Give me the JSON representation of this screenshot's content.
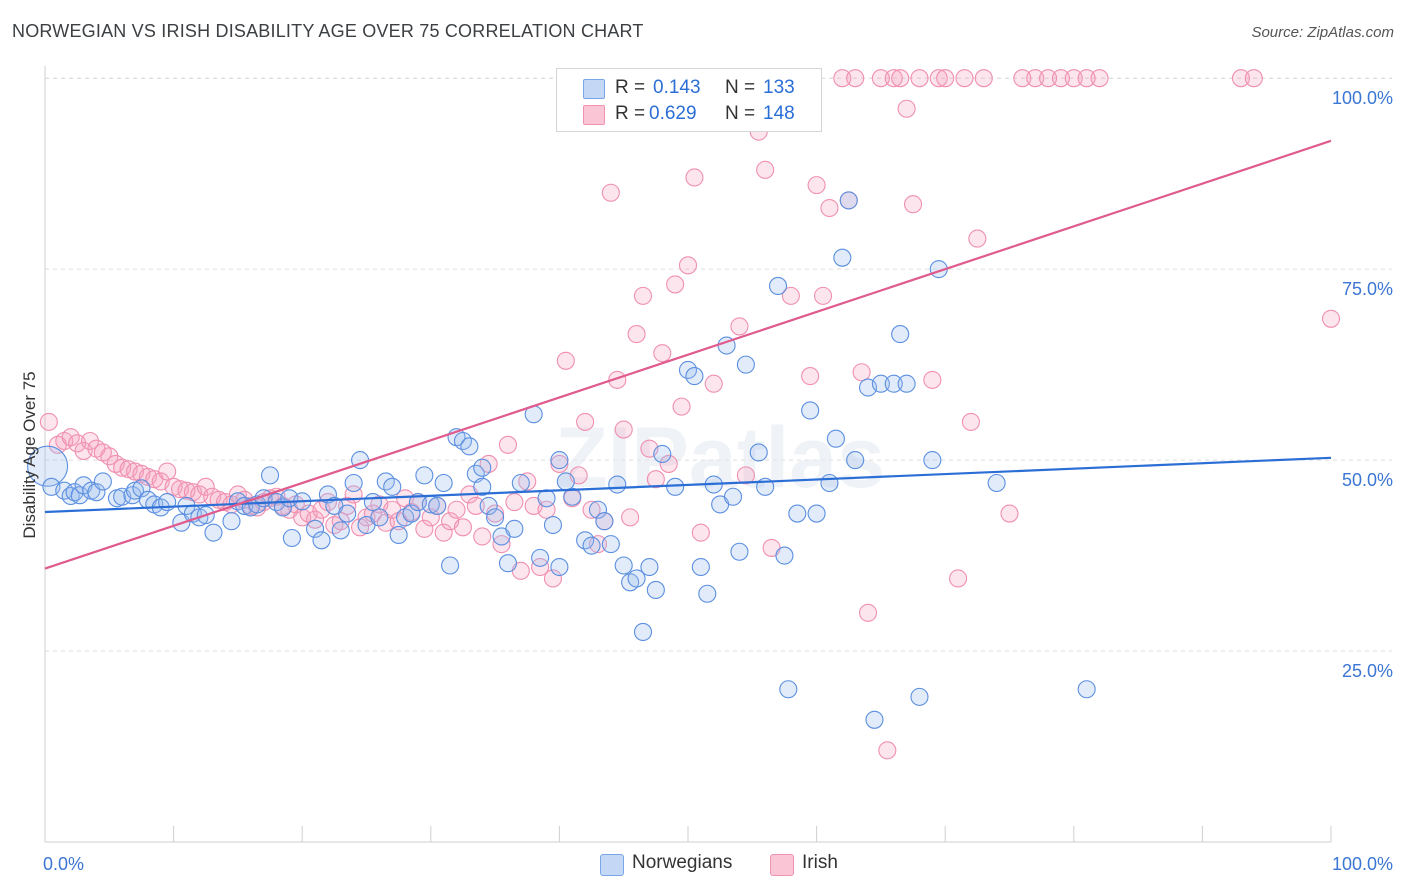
{
  "title": "NORWEGIAN VS IRISH DISABILITY AGE OVER 75 CORRELATION CHART",
  "source": "Source: ZipAtlas.com",
  "watermark": "ZIPatlas",
  "legend": {
    "r_label": "R =",
    "n_label": "N =",
    "norwegians": {
      "r": "0.143",
      "n": "133",
      "color": "#9bbdf0"
    },
    "irish": {
      "r": "0.629",
      "n": "148",
      "color": "#f5a3bd"
    }
  },
  "bottom_legend": {
    "norwegians": "Norwegians",
    "irish": "Irish"
  },
  "chart_data": {
    "type": "scatter",
    "title": "NORWEGIAN VS IRISH DISABILITY AGE OVER 75 CORRELATION CHART",
    "xlabel": "",
    "ylabel": "Disability Age Over 75",
    "xlim": [
      0,
      100
    ],
    "ylim": [
      0,
      105
    ],
    "x_tick_labels": [
      "0.0%",
      "100.0%"
    ],
    "y_tick_labels": [
      "25.0%",
      "50.0%",
      "75.0%",
      "100.0%"
    ],
    "y_ticks": [
      25,
      50,
      75,
      100
    ],
    "grid": true,
    "legend_position": "top-center",
    "series": [
      {
        "name": "Norwegians",
        "color": "#5b8fe0",
        "trend": {
          "x": [
            0,
            100
          ],
          "y": [
            43.2,
            50.3
          ],
          "color": "#2b6ed6"
        },
        "points": [
          [
            0.2,
            49.2
          ],
          [
            0.5,
            46.5
          ],
          [
            1.5,
            46.0
          ],
          [
            2,
            45.3
          ],
          [
            2.3,
            45.8
          ],
          [
            2.7,
            45.4
          ],
          [
            3,
            46.7
          ],
          [
            3.6,
            46.0
          ],
          [
            4,
            45.8
          ],
          [
            4.5,
            47.2
          ],
          [
            5.6,
            45.0
          ],
          [
            6,
            45.2
          ],
          [
            6.8,
            45.4
          ],
          [
            7,
            46.0
          ],
          [
            7.5,
            46.3
          ],
          [
            8,
            44.8
          ],
          [
            8.5,
            44.2
          ],
          [
            9,
            43.8
          ],
          [
            9.5,
            44.5
          ],
          [
            10.6,
            41.8
          ],
          [
            11,
            44.0
          ],
          [
            11.5,
            43.0
          ],
          [
            12,
            42.5
          ],
          [
            12.5,
            42.8
          ],
          [
            13.1,
            40.5
          ],
          [
            14.5,
            42.0
          ],
          [
            15,
            44.6
          ],
          [
            15.5,
            44.0
          ],
          [
            16,
            43.8
          ],
          [
            16.5,
            44.2
          ],
          [
            17,
            45.0
          ],
          [
            17.5,
            48.0
          ],
          [
            18,
            44.5
          ],
          [
            18.5,
            43.8
          ],
          [
            19,
            45.0
          ],
          [
            19.2,
            39.8
          ],
          [
            20,
            44.6
          ],
          [
            21,
            41.0
          ],
          [
            21.5,
            39.5
          ],
          [
            22,
            45.5
          ],
          [
            22.5,
            44.0
          ],
          [
            23,
            40.8
          ],
          [
            23.5,
            43.0
          ],
          [
            24,
            47.0
          ],
          [
            24.5,
            50.0
          ],
          [
            25,
            41.5
          ],
          [
            25.5,
            44.5
          ],
          [
            26,
            42.5
          ],
          [
            26.5,
            47.2
          ],
          [
            27,
            46.5
          ],
          [
            27.5,
            40.2
          ],
          [
            28,
            42.5
          ],
          [
            28.5,
            43.0
          ],
          [
            29,
            44.5
          ],
          [
            29.5,
            48.0
          ],
          [
            30,
            44.2
          ],
          [
            30.5,
            44.0
          ],
          [
            31,
            47.0
          ],
          [
            31.5,
            36.2
          ],
          [
            32,
            53.0
          ],
          [
            32.5,
            52.5
          ],
          [
            33,
            51.8
          ],
          [
            33.5,
            48.2
          ],
          [
            34,
            49.0
          ],
          [
            34.5,
            44.0
          ],
          [
            35,
            42.5
          ],
          [
            35.5,
            40.0
          ],
          [
            36,
            36.5
          ],
          [
            36.5,
            41.0
          ],
          [
            37,
            47.0
          ],
          [
            38,
            56.0
          ],
          [
            38.5,
            37.2
          ],
          [
            39,
            45.0
          ],
          [
            39.5,
            41.5
          ],
          [
            40,
            36.0
          ],
          [
            40.5,
            47.2
          ],
          [
            41,
            45.2
          ],
          [
            42,
            39.5
          ],
          [
            42.5,
            38.8
          ],
          [
            43,
            43.5
          ],
          [
            43.5,
            42.0
          ],
          [
            44,
            39.0
          ],
          [
            44.5,
            46.8
          ],
          [
            45,
            36.2
          ],
          [
            45.5,
            34.0
          ],
          [
            46,
            34.5
          ],
          [
            46.5,
            27.5
          ],
          [
            47,
            36.0
          ],
          [
            47.5,
            33.0
          ],
          [
            48,
            50.8
          ],
          [
            49,
            46.5
          ],
          [
            50,
            61.8
          ],
          [
            50.5,
            61.0
          ],
          [
            51,
            36.0
          ],
          [
            51.5,
            32.5
          ],
          [
            52,
            46.8
          ],
          [
            52.5,
            44.2
          ],
          [
            53,
            65.0
          ],
          [
            53.5,
            45.2
          ],
          [
            54,
            38.0
          ],
          [
            54.5,
            62.5
          ],
          [
            55.5,
            51.0
          ],
          [
            56,
            46.5
          ],
          [
            57,
            72.8
          ],
          [
            57.5,
            37.5
          ],
          [
            57.8,
            20.0
          ],
          [
            58.5,
            43.0
          ],
          [
            59.5,
            56.5
          ],
          [
            60,
            43.0
          ],
          [
            61,
            47.0
          ],
          [
            61.5,
            52.8
          ],
          [
            62,
            76.5
          ],
          [
            62.5,
            84.0
          ],
          [
            63,
            50.0
          ],
          [
            64,
            59.5
          ],
          [
            64.5,
            16.0
          ],
          [
            65,
            60.0
          ],
          [
            66,
            60.0
          ],
          [
            66.5,
            66.5
          ],
          [
            67,
            60.0
          ],
          [
            68,
            19.0
          ],
          [
            69,
            50.0
          ],
          [
            69.5,
            75.0
          ],
          [
            74,
            47.0
          ],
          [
            81,
            20.0
          ],
          [
            40,
            50.0
          ],
          [
            34,
            46.5
          ]
        ]
      },
      {
        "name": "Irish",
        "color": "#f07ba0",
        "trend": {
          "x": [
            0,
            100
          ],
          "y": [
            35.8,
            91.8
          ],
          "color": "#e05b8c"
        },
        "points": [
          [
            0.3,
            55.0
          ],
          [
            1,
            52.0
          ],
          [
            1.5,
            52.5
          ],
          [
            2,
            53.0
          ],
          [
            2.5,
            52.2
          ],
          [
            3,
            51.2
          ],
          [
            3.5,
            52.5
          ],
          [
            4,
            51.5
          ],
          [
            4.5,
            51.0
          ],
          [
            5,
            50.5
          ],
          [
            5.5,
            49.5
          ],
          [
            6,
            49.0
          ],
          [
            6.5,
            48.8
          ],
          [
            7,
            48.5
          ],
          [
            7.5,
            48.2
          ],
          [
            8,
            47.8
          ],
          [
            8.5,
            47.5
          ],
          [
            9,
            47.2
          ],
          [
            9.5,
            48.5
          ],
          [
            10,
            46.5
          ],
          [
            10.5,
            46.2
          ],
          [
            11,
            46.0
          ],
          [
            11.5,
            45.8
          ],
          [
            12,
            45.5
          ],
          [
            12.5,
            46.5
          ],
          [
            13,
            45.2
          ],
          [
            13.5,
            44.8
          ],
          [
            14,
            44.5
          ],
          [
            14.5,
            44.2
          ],
          [
            15,
            45.5
          ],
          [
            15.5,
            44.8
          ],
          [
            16,
            44.0
          ],
          [
            16.5,
            43.8
          ],
          [
            17,
            44.5
          ],
          [
            17.5,
            45.0
          ],
          [
            18,
            45.2
          ],
          [
            18.5,
            44.0
          ],
          [
            19,
            43.5
          ],
          [
            19.5,
            44.2
          ],
          [
            20,
            42.5
          ],
          [
            20.5,
            43.0
          ],
          [
            21,
            42.2
          ],
          [
            21.5,
            43.5
          ],
          [
            22,
            44.5
          ],
          [
            22.5,
            41.5
          ],
          [
            23,
            42.0
          ],
          [
            23.5,
            44.0
          ],
          [
            24,
            45.5
          ],
          [
            24.5,
            41.2
          ],
          [
            25,
            42.5
          ],
          [
            25.5,
            43.0
          ],
          [
            26,
            44.2
          ],
          [
            26.5,
            41.8
          ],
          [
            27,
            43.5
          ],
          [
            27.5,
            42.0
          ],
          [
            28,
            45.0
          ],
          [
            28.5,
            43.2
          ],
          [
            29,
            44.5
          ],
          [
            29.5,
            41.0
          ],
          [
            30,
            42.5
          ],
          [
            30.5,
            44.0
          ],
          [
            31,
            40.5
          ],
          [
            31.5,
            42.0
          ],
          [
            32,
            43.5
          ],
          [
            32.5,
            41.2
          ],
          [
            33,
            45.5
          ],
          [
            33.5,
            44.0
          ],
          [
            34,
            40.0
          ],
          [
            34.5,
            49.5
          ],
          [
            35,
            43.0
          ],
          [
            35.5,
            39.0
          ],
          [
            36,
            52.0
          ],
          [
            36.5,
            44.5
          ],
          [
            37,
            35.5
          ],
          [
            37.5,
            47.2
          ],
          [
            38,
            44.0
          ],
          [
            38.5,
            36.0
          ],
          [
            39,
            43.5
          ],
          [
            39.5,
            34.5
          ],
          [
            40,
            49.5
          ],
          [
            40.5,
            63.0
          ],
          [
            41,
            45.0
          ],
          [
            41.5,
            48.0
          ],
          [
            42,
            55.0
          ],
          [
            42.5,
            43.5
          ],
          [
            43,
            39.0
          ],
          [
            43.5,
            42.0
          ],
          [
            44,
            85.0
          ],
          [
            44.5,
            60.5
          ],
          [
            45,
            54.0
          ],
          [
            45.5,
            42.5
          ],
          [
            46,
            66.5
          ],
          [
            46.5,
            71.5
          ],
          [
            47,
            51.5
          ],
          [
            47.5,
            47.5
          ],
          [
            48,
            64.0
          ],
          [
            48.5,
            49.5
          ],
          [
            49,
            73.0
          ],
          [
            49.5,
            57.0
          ],
          [
            50,
            75.5
          ],
          [
            50.5,
            87.0
          ],
          [
            51,
            40.5
          ],
          [
            52,
            60.0
          ],
          [
            52.5,
            100
          ],
          [
            53,
            100
          ],
          [
            53.5,
            100
          ],
          [
            54,
            67.5
          ],
          [
            54.5,
            48.0
          ],
          [
            55,
            100
          ],
          [
            55.5,
            93.0
          ],
          [
            56,
            88.0
          ],
          [
            56.5,
            38.5
          ],
          [
            57,
            100
          ],
          [
            57.5,
            100
          ],
          [
            58,
            71.5
          ],
          [
            59,
            100
          ],
          [
            59.5,
            61.0
          ],
          [
            60,
            86.0
          ],
          [
            60.5,
            71.5
          ],
          [
            61,
            83.0
          ],
          [
            62,
            100
          ],
          [
            62.5,
            84.0
          ],
          [
            63,
            100
          ],
          [
            63.5,
            61.5
          ],
          [
            64,
            30.0
          ],
          [
            65,
            100
          ],
          [
            65.5,
            12.0
          ],
          [
            66,
            100
          ],
          [
            66.5,
            100
          ],
          [
            67,
            96.0
          ],
          [
            67.5,
            83.5
          ],
          [
            68,
            100
          ],
          [
            69,
            60.5
          ],
          [
            69.5,
            100
          ],
          [
            70,
            100
          ],
          [
            71,
            34.5
          ],
          [
            71.5,
            100
          ],
          [
            72,
            55.0
          ],
          [
            72.5,
            79.0
          ],
          [
            73,
            100
          ],
          [
            75,
            43.0
          ],
          [
            76,
            100
          ],
          [
            77,
            100
          ],
          [
            78,
            100
          ],
          [
            79,
            100
          ],
          [
            80,
            100
          ],
          [
            81,
            100
          ],
          [
            82,
            100
          ],
          [
            93,
            100
          ],
          [
            94,
            100
          ],
          [
            100,
            68.5
          ]
        ]
      }
    ]
  }
}
